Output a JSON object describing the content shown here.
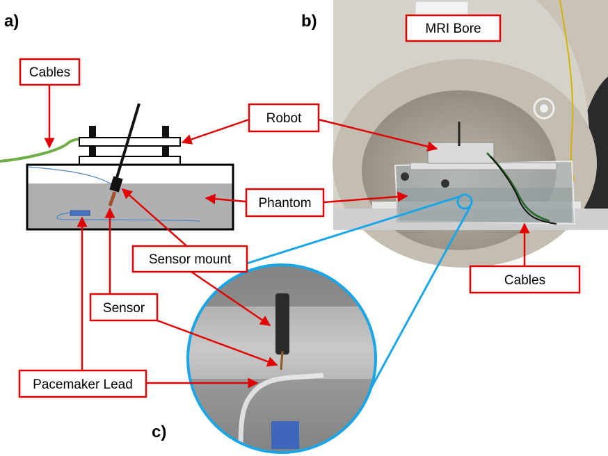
{
  "panels": {
    "a": "a)",
    "b": "b)",
    "c": "c)"
  },
  "callouts": {
    "cables_a": "Cables",
    "robot": "Robot",
    "phantom": "Phantom",
    "sensor_mount": "Sensor mount",
    "sensor": "Sensor",
    "pacemaker_lead": "Pacemaker Lead",
    "mri_bore": "MRI Bore",
    "cables_b": "Cables"
  },
  "colors": {
    "callout_border": "#e00000",
    "arrow": "#e00000",
    "magnifier_outline": "#1aa6e6",
    "phantom_fluid": "#b0b0b0",
    "cable_green": "#70ad47",
    "lead_blue": "#4a86c8"
  }
}
